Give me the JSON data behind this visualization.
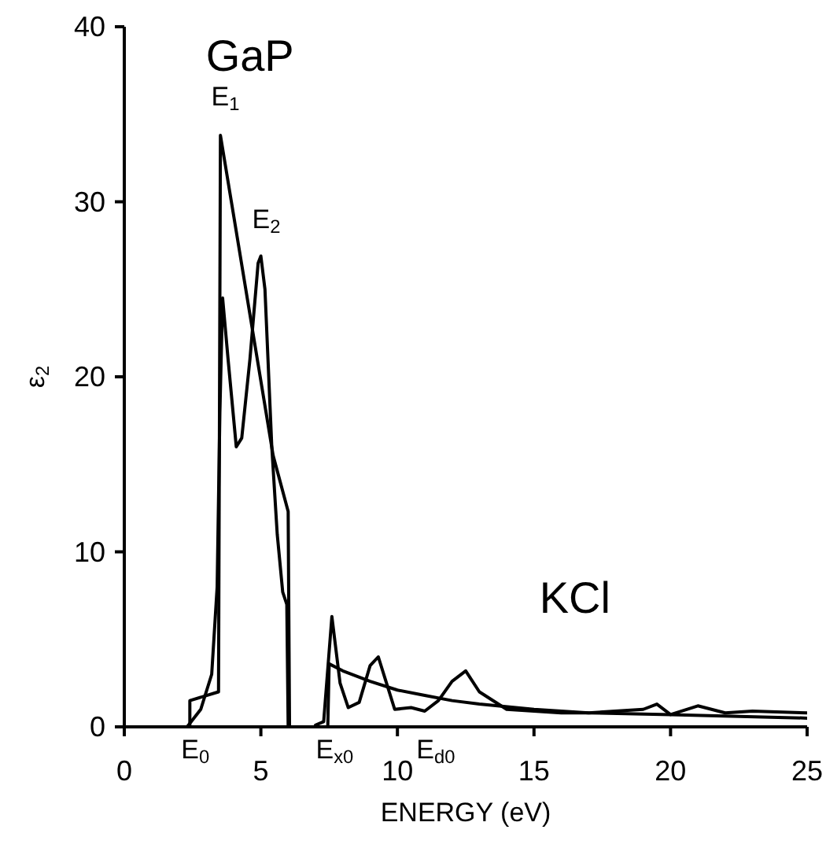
{
  "chart_data": {
    "type": "line",
    "xlabel": "ENERGY (eV)",
    "ylabel": "ε$_{2}$",
    "xlim": [
      0,
      25
    ],
    "ylim": [
      0,
      40
    ],
    "xticks": [
      0,
      5,
      10,
      15,
      20,
      25
    ],
    "yticks": [
      0,
      10,
      20,
      30,
      40
    ],
    "marker": "none",
    "line_style": "solid",
    "series": [
      {
        "color": "#000000",
        "x": [
          2.3,
          2.8,
          3.2,
          3.4,
          3.5,
          3.6,
          3.8,
          4.1,
          4.3,
          4.6,
          4.9,
          5.0,
          5.15,
          5.4,
          5.6,
          5.8,
          5.95,
          6.0
        ],
        "values": [
          0,
          1,
          3,
          8,
          18,
          24.5,
          21,
          16,
          16.5,
          21,
          26.5,
          26.9,
          25,
          16,
          11,
          7.7,
          7,
          0
        ]
      },
      {
        "color": "#000000",
        "x": [
          2.4,
          2.4,
          3.45,
          3.52,
          5.45,
          6.0,
          6.05
        ],
        "values": [
          0,
          1.5,
          2,
          33.8,
          15.5,
          12.3,
          0
        ]
      },
      {
        "color": "#000000",
        "x": [
          7.0,
          7.3,
          7.6,
          7.9,
          8.2,
          8.6,
          9.0,
          9.3,
          9.6,
          9.9,
          10.5,
          11.0,
          11.5,
          12.0,
          12.5,
          13.0,
          14.0,
          16.0,
          17.0,
          19.0,
          19.5,
          20.0,
          21.0,
          22.0,
          23.0,
          25.0
        ],
        "values": [
          0.1,
          0.3,
          6.3,
          2.5,
          1.1,
          1.4,
          3.5,
          4.0,
          2.5,
          1.0,
          1.1,
          0.9,
          1.5,
          2.6,
          3.2,
          2.0,
          1.0,
          0.8,
          0.8,
          1.0,
          1.3,
          0.7,
          1.2,
          0.8,
          0.9,
          0.8
        ]
      },
      {
        "color": "#000000",
        "x": [
          7.45,
          7.5,
          8,
          9,
          10,
          11,
          12,
          13,
          15,
          17,
          20,
          25
        ],
        "values": [
          0,
          3.6,
          3.2,
          2.6,
          2.1,
          1.8,
          1.5,
          1.3,
          1.0,
          0.8,
          0.7,
          0.5
        ]
      }
    ],
    "annotations": [
      "GaP",
      "KCl",
      "E$_{1}$",
      "E$_{2}$",
      "E$_{0}$",
      "E$_{x0}$",
      "E$_{d0}$"
    ]
  }
}
